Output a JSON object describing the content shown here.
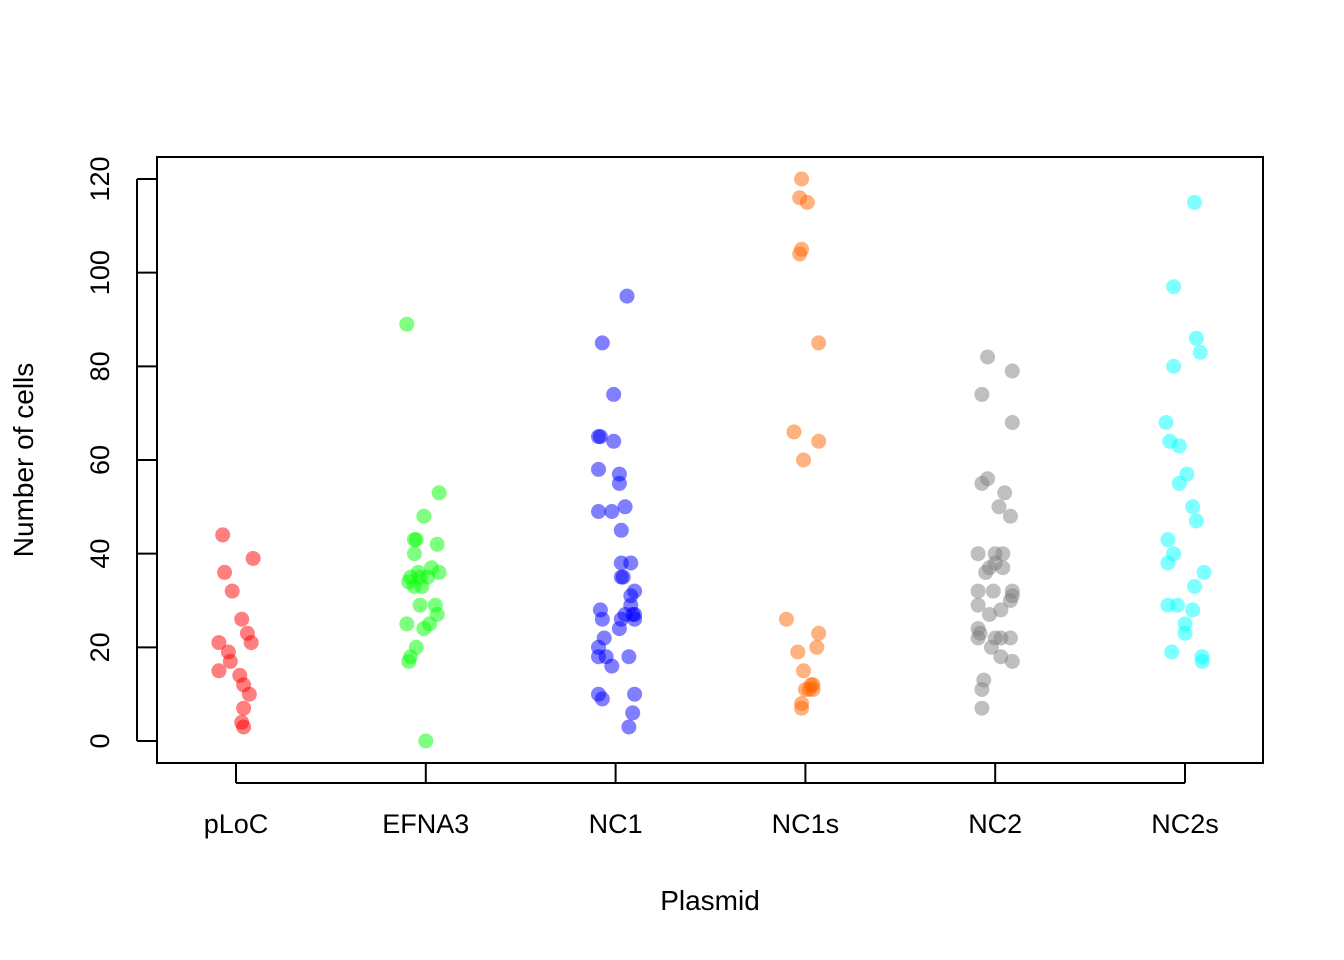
{
  "chart_data": {
    "type": "scatter",
    "title": "",
    "xlabel": "Plasmid",
    "ylabel": "Number of cells",
    "ylim": [
      -5,
      125
    ],
    "yticks": [
      0,
      20,
      40,
      60,
      80,
      100,
      120
    ],
    "grid": false,
    "legend": "none",
    "categories": [
      "pLoC",
      "EFNA3",
      "NC1",
      "NC1s",
      "NC2",
      "NC2s"
    ],
    "series": [
      {
        "category": "pLoC",
        "color": "#ff0000",
        "points": [
          [
            -0.07,
            44
          ],
          [
            0.09,
            39
          ],
          [
            -0.06,
            36
          ],
          [
            -0.02,
            32
          ],
          [
            0.03,
            26
          ],
          [
            0.06,
            23
          ],
          [
            -0.09,
            21
          ],
          [
            0.08,
            21
          ],
          [
            -0.04,
            19
          ],
          [
            -0.03,
            17
          ],
          [
            -0.09,
            15
          ],
          [
            0.02,
            14
          ],
          [
            0.04,
            12
          ],
          [
            0.07,
            10
          ],
          [
            0.04,
            7
          ],
          [
            0.03,
            4
          ],
          [
            0.04,
            3
          ]
        ]
      },
      {
        "category": "EFNA3",
        "color": "#00ff00",
        "points": [
          [
            -0.1,
            89
          ],
          [
            0.07,
            53
          ],
          [
            -0.01,
            48
          ],
          [
            -0.06,
            43
          ],
          [
            -0.05,
            43
          ],
          [
            0.06,
            42
          ],
          [
            -0.06,
            40
          ],
          [
            0.03,
            37
          ],
          [
            -0.04,
            36
          ],
          [
            0.07,
            36
          ],
          [
            -0.08,
            35
          ],
          [
            -0.03,
            35
          ],
          [
            0.01,
            35
          ],
          [
            -0.09,
            34
          ],
          [
            -0.06,
            33
          ],
          [
            -0.02,
            33
          ],
          [
            -0.03,
            29
          ],
          [
            0.05,
            29
          ],
          [
            0.06,
            27
          ],
          [
            0.02,
            25
          ],
          [
            -0.1,
            25
          ],
          [
            -0.01,
            24
          ],
          [
            -0.05,
            20
          ],
          [
            -0.08,
            18
          ],
          [
            -0.09,
            17
          ],
          [
            0.0,
            0
          ]
        ]
      },
      {
        "category": "NC1",
        "color": "#0000ff",
        "points": [
          [
            0.06,
            95
          ],
          [
            -0.07,
            85
          ],
          [
            -0.01,
            74
          ],
          [
            -0.09,
            65
          ],
          [
            -0.08,
            65
          ],
          [
            -0.01,
            64
          ],
          [
            -0.09,
            58
          ],
          [
            0.02,
            57
          ],
          [
            0.02,
            55
          ],
          [
            0.05,
            50
          ],
          [
            -0.09,
            49
          ],
          [
            -0.02,
            49
          ],
          [
            0.03,
            45
          ],
          [
            0.03,
            38
          ],
          [
            0.08,
            38
          ],
          [
            0.03,
            35
          ],
          [
            0.04,
            35
          ],
          [
            0.1,
            32
          ],
          [
            0.08,
            31
          ],
          [
            0.08,
            29
          ],
          [
            -0.08,
            28
          ],
          [
            0.05,
            27
          ],
          [
            0.09,
            27
          ],
          [
            0.1,
            27
          ],
          [
            0.03,
            26
          ],
          [
            -0.07,
            26
          ],
          [
            0.1,
            26
          ],
          [
            0.02,
            24
          ],
          [
            -0.06,
            22
          ],
          [
            -0.09,
            20
          ],
          [
            -0.09,
            18
          ],
          [
            0.07,
            18
          ],
          [
            -0.05,
            18
          ],
          [
            -0.02,
            16
          ],
          [
            -0.09,
            10
          ],
          [
            0.1,
            10
          ],
          [
            -0.07,
            9
          ],
          [
            0.09,
            6
          ],
          [
            0.07,
            3
          ]
        ]
      },
      {
        "category": "NC1s",
        "color": "#ff6600",
        "points": [
          [
            -0.02,
            120
          ],
          [
            -0.03,
            116
          ],
          [
            0.01,
            115
          ],
          [
            -0.02,
            105
          ],
          [
            -0.03,
            104
          ],
          [
            0.07,
            85
          ],
          [
            -0.06,
            66
          ],
          [
            0.07,
            64
          ],
          [
            -0.01,
            60
          ],
          [
            -0.1,
            26
          ],
          [
            0.07,
            23
          ],
          [
            0.06,
            20
          ],
          [
            -0.04,
            19
          ],
          [
            -0.01,
            15
          ],
          [
            0.03,
            12
          ],
          [
            0.04,
            12
          ],
          [
            0.0,
            11
          ],
          [
            0.02,
            11
          ],
          [
            0.04,
            11
          ],
          [
            -0.02,
            8
          ],
          [
            -0.02,
            7
          ]
        ]
      },
      {
        "category": "NC2",
        "color": "#808080",
        "points": [
          [
            -0.04,
            82
          ],
          [
            0.09,
            79
          ],
          [
            -0.07,
            74
          ],
          [
            0.09,
            68
          ],
          [
            -0.04,
            56
          ],
          [
            -0.07,
            55
          ],
          [
            0.05,
            53
          ],
          [
            0.02,
            50
          ],
          [
            0.08,
            48
          ],
          [
            -0.09,
            40
          ],
          [
            0.0,
            40
          ],
          [
            0.04,
            40
          ],
          [
            0.0,
            38
          ],
          [
            -0.03,
            37
          ],
          [
            0.04,
            37
          ],
          [
            -0.05,
            36
          ],
          [
            -0.09,
            32
          ],
          [
            -0.01,
            32
          ],
          [
            0.09,
            32
          ],
          [
            0.09,
            31
          ],
          [
            0.08,
            30
          ],
          [
            -0.09,
            29
          ],
          [
            0.03,
            28
          ],
          [
            -0.03,
            27
          ],
          [
            -0.09,
            24
          ],
          [
            -0.08,
            23
          ],
          [
            -0.09,
            22
          ],
          [
            0.0,
            22
          ],
          [
            0.03,
            22
          ],
          [
            0.08,
            22
          ],
          [
            -0.02,
            20
          ],
          [
            0.03,
            18
          ],
          [
            0.09,
            17
          ],
          [
            -0.06,
            13
          ],
          [
            -0.07,
            11
          ],
          [
            -0.07,
            7
          ]
        ]
      },
      {
        "category": "NC2s",
        "color": "#00ffff",
        "points": [
          [
            0.05,
            115
          ],
          [
            -0.06,
            97
          ],
          [
            0.06,
            86
          ],
          [
            0.08,
            83
          ],
          [
            -0.06,
            80
          ],
          [
            -0.1,
            68
          ],
          [
            -0.08,
            64
          ],
          [
            -0.03,
            63
          ],
          [
            0.01,
            57
          ],
          [
            -0.03,
            55
          ],
          [
            0.04,
            50
          ],
          [
            0.06,
            47
          ],
          [
            -0.09,
            43
          ],
          [
            -0.06,
            40
          ],
          [
            -0.09,
            38
          ],
          [
            0.1,
            36
          ],
          [
            0.05,
            33
          ],
          [
            -0.09,
            29
          ],
          [
            -0.04,
            29
          ],
          [
            0.04,
            28
          ],
          [
            0.0,
            25
          ],
          [
            0.0,
            23
          ],
          [
            -0.07,
            19
          ],
          [
            0.09,
            18
          ],
          [
            0.09,
            17
          ]
        ]
      }
    ]
  }
}
